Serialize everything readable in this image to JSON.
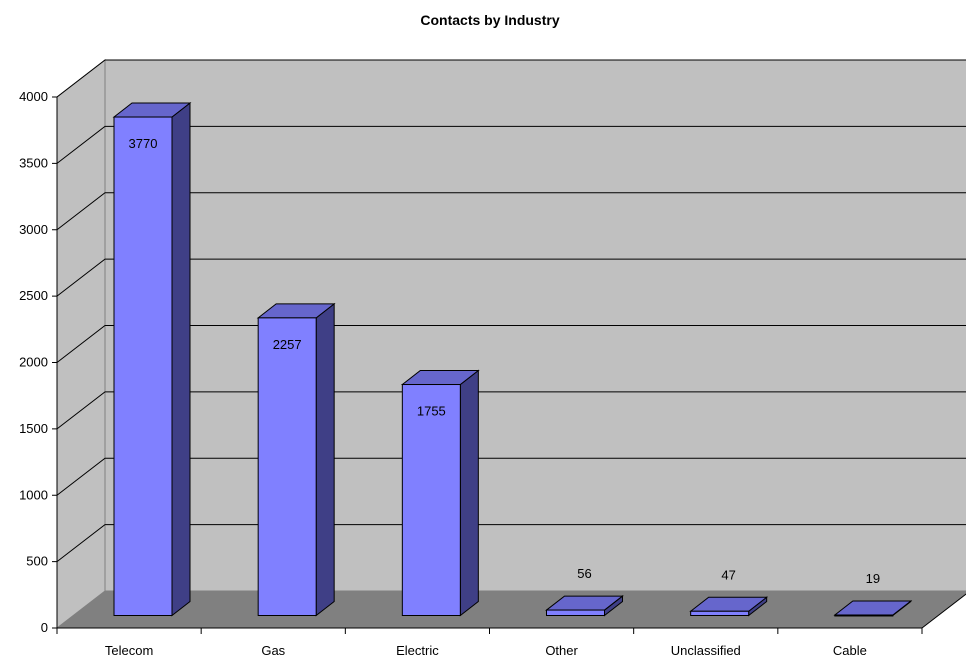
{
  "chart_data": {
    "type": "bar",
    "title": "Contacts by Industry",
    "categories": [
      "Telecom",
      "Gas",
      "Electric",
      "Other",
      "Unclassified",
      "Cable"
    ],
    "values": [
      3770,
      2257,
      1755,
      56,
      47,
      19
    ],
    "data_labels": [
      "3770",
      "2257",
      "1755",
      "56",
      "47",
      "19"
    ],
    "y_ticks": [
      "0",
      "500",
      "1000",
      "1500",
      "2000",
      "2500",
      "3000",
      "3500",
      "4000"
    ],
    "ylim": [
      0,
      4000
    ],
    "xlabel": "",
    "ylabel": "",
    "grid": true,
    "legend": "none",
    "style": "3d-column",
    "colors": {
      "bar_front": "#8080ff",
      "bar_side": "#3f3f86",
      "bar_top": "#6666cc",
      "back_wall": "#c0c0c0",
      "side_wall": "#c0c0c0",
      "floor": "#808080",
      "gridline": "#000000"
    }
  }
}
